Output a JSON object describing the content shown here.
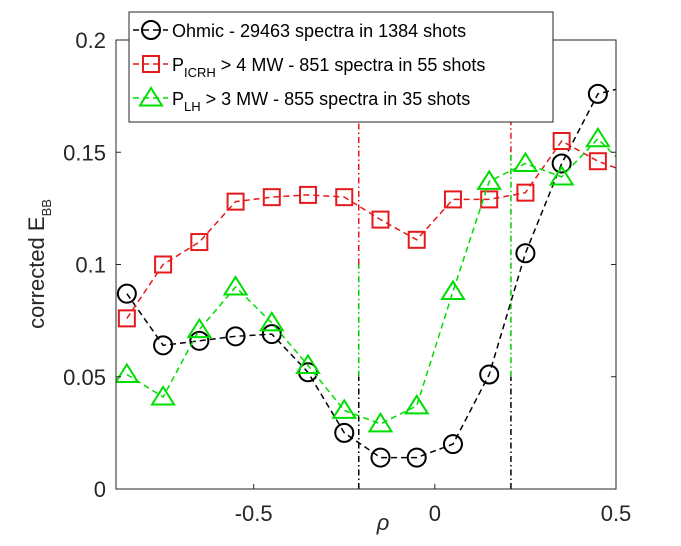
{
  "chart_data": {
    "type": "line",
    "title": "",
    "xlabel": "ρ",
    "ylabel": {
      "main": "corrected E",
      "sub": "BB"
    },
    "xlim": [
      -0.88,
      0.5
    ],
    "ylim": [
      0,
      0.2
    ],
    "xticks": [
      -0.5,
      0,
      0.5
    ],
    "xtick_labels": [
      "-0.5",
      "0",
      "0.5"
    ],
    "yticks": [
      0,
      0.05,
      0.1,
      0.15,
      0.2
    ],
    "ytick_labels": [
      "0",
      "0.05",
      "0.1",
      "0.15",
      "0.2"
    ],
    "grid": false,
    "legend_position": "top",
    "series": [
      {
        "id": "ohmic",
        "legend": {
          "text": "Ohmic - 29463 spectra in 1384 shots",
          "sub": "",
          "rest": ""
        },
        "color": "#000000",
        "marker": "circle",
        "x": [
          -0.85,
          -0.75,
          -0.65,
          -0.55,
          -0.45,
          -0.35,
          -0.25,
          -0.15,
          -0.05,
          0.05,
          0.15,
          0.25,
          0.35,
          0.45,
          0.55
        ],
        "y": [
          0.087,
          0.064,
          0.066,
          0.068,
          0.069,
          0.052,
          0.025,
          0.014,
          0.014,
          0.02,
          0.051,
          0.105,
          0.145,
          0.176,
          0.18
        ]
      },
      {
        "id": "icrh",
        "legend": {
          "text": "P",
          "sub": "ICRH",
          "rest": " > 4 MW  - 851 spectra in 55 shots"
        },
        "color": "#e41a1c",
        "marker": "square",
        "x": [
          -0.85,
          -0.75,
          -0.65,
          -0.55,
          -0.45,
          -0.35,
          -0.25,
          -0.15,
          -0.05,
          0.05,
          0.15,
          0.25,
          0.35,
          0.45,
          0.55
        ],
        "y": [
          0.076,
          0.1,
          0.11,
          0.128,
          0.13,
          0.131,
          0.13,
          0.12,
          0.111,
          0.129,
          0.129,
          0.132,
          0.155,
          0.146,
          0.14
        ]
      },
      {
        "id": "lh",
        "legend": {
          "text": "P",
          "sub": "LH",
          "rest": " > 3 MW - 855 spectra in 35 shots"
        },
        "color": "#00dd00",
        "marker": "triangle",
        "x": [
          -0.85,
          -0.75,
          -0.65,
          -0.55,
          -0.45,
          -0.35,
          -0.25,
          -0.15,
          -0.05,
          0.05,
          0.15,
          0.25,
          0.35,
          0.45,
          0.55
        ],
        "y": [
          0.051,
          0.041,
          0.071,
          0.09,
          0.074,
          0.055,
          0.035,
          0.029,
          0.037,
          0.088,
          0.137,
          0.145,
          0.139,
          0.156,
          0.14
        ]
      }
    ],
    "vertical_lines": [
      {
        "x": -0.21,
        "color": "#000000",
        "y": [
          0,
          0.05
        ]
      },
      {
        "x": -0.21,
        "color": "#00cc00",
        "y": [
          0.05,
          0.1
        ]
      },
      {
        "x": -0.21,
        "color": "#e41a1c",
        "y": [
          0.1,
          0.2
        ]
      },
      {
        "x": 0.21,
        "color": "#000000",
        "y": [
          0,
          0.05
        ]
      },
      {
        "x": 0.21,
        "color": "#00cc00",
        "y": [
          0.05,
          0.15
        ]
      },
      {
        "x": 0.21,
        "color": "#e41a1c",
        "y": [
          0.15,
          0.2
        ]
      }
    ]
  }
}
